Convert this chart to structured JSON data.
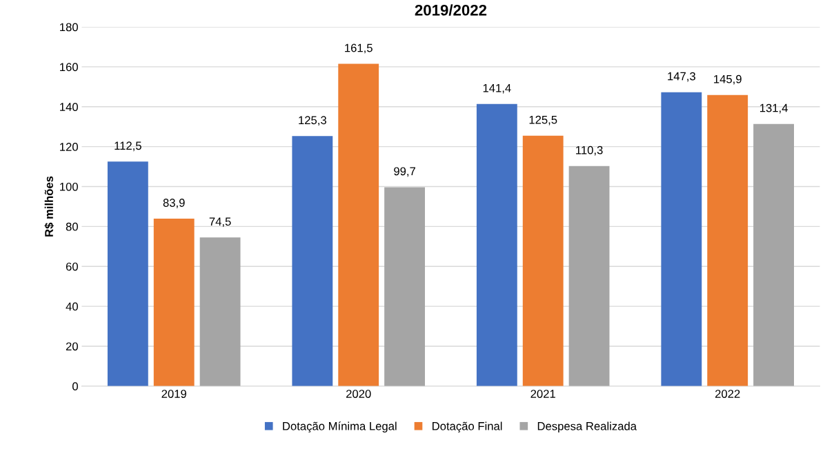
{
  "chart_data": {
    "type": "bar",
    "title": "2019/2022",
    "ylabel": "R$ milhões",
    "categories": [
      "2019",
      "2020",
      "2021",
      "2022"
    ],
    "series": [
      {
        "name": "Dotação Mínima Legal",
        "color": "#4472c4",
        "values": [
          112.5,
          125.3,
          141.4,
          147.3
        ],
        "value_labels": [
          "112,5",
          "125,3",
          "141,4",
          "147,3"
        ]
      },
      {
        "name": "Dotação Final",
        "color": "#ed7d31",
        "values": [
          83.9,
          161.5,
          125.5,
          145.9
        ],
        "value_labels": [
          "83,9",
          "161,5",
          "125,5",
          "145,9"
        ]
      },
      {
        "name": "Despesa Realizada",
        "color": "#a5a5a5",
        "values": [
          74.5,
          99.7,
          110.3,
          131.4
        ],
        "value_labels": [
          "74,5",
          "99,7",
          "110,3",
          "131,4"
        ]
      }
    ],
    "ylim": [
      0,
      180
    ],
    "yticks": [
      0,
      20,
      40,
      60,
      80,
      100,
      120,
      140,
      160,
      180
    ],
    "grid": "y",
    "legend": "bottom"
  }
}
